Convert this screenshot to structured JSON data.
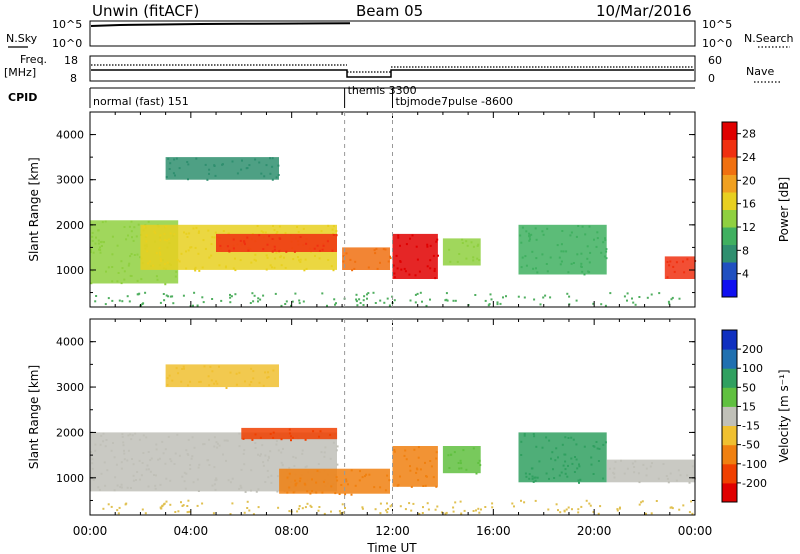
{
  "header": {
    "station": "Unwin (fitACF)",
    "beam": "Beam 05",
    "date": "10/Mar/2016"
  },
  "strip_labels": {
    "nsky": "N.Sky",
    "nsearch": "N.Search",
    "freq_line1": "Freq.",
    "freq_line2": "[MHz]",
    "nave": "Nave",
    "cpid": "CPID",
    "nsky_ticks": [
      "10^5",
      "10^0"
    ],
    "nsearch_ticks": [
      "10^5",
      "10^0"
    ],
    "freq_ticks": [
      "18",
      "8"
    ],
    "nave_ticks": [
      "60",
      "0"
    ]
  },
  "cpid_segments": [
    {
      "label": "normal (fast) 151",
      "start_hour": 0.0,
      "end_hour": 10.1
    },
    {
      "label": "themis 3300",
      "start_hour": 10.1,
      "end_hour": 12.0
    },
    {
      "label": "tbjmode7pulse -8600",
      "start_hour": 12.0,
      "end_hour": 24.0
    }
  ],
  "axes": {
    "xlabel": "Time UT",
    "x_ticks": [
      "00:00",
      "04:00",
      "08:00",
      "12:00",
      "16:00",
      "20:00",
      "00:00"
    ],
    "ylabel": "Slant Range [km]",
    "y_ticks": [
      "1000",
      "2000",
      "3000",
      "4000"
    ]
  },
  "power_colorbar": {
    "label": "Power [dB]",
    "ticks": [
      "4",
      "8",
      "12",
      "16",
      "20",
      "24",
      "28"
    ],
    "colors": [
      "#1010f0",
      "#2050c0",
      "#2f8f6f",
      "#40b060",
      "#8fd040",
      "#e8d020",
      "#f0a020",
      "#f07010",
      "#f03010",
      "#e00000"
    ]
  },
  "velocity_colorbar": {
    "label": "Velocity [m s⁻¹]",
    "ticks": [
      "200",
      "100",
      "50",
      "15",
      "-15",
      "-50",
      "-100",
      "-200"
    ],
    "colors": [
      "#1030c0",
      "#2070b0",
      "#30a060",
      "#60c040",
      "#c0c0b8",
      "#f0c030",
      "#f08010",
      "#f04000",
      "#e00000"
    ]
  },
  "chart_data": {
    "type": "heatmap",
    "x_range_hours": [
      0,
      24
    ],
    "y_range_km": [
      180,
      4500
    ],
    "panels": [
      {
        "name": "Power",
        "regions": [
          {
            "t0": 0.0,
            "t1": 3.5,
            "r0": 700,
            "r1": 2100,
            "level": 14
          },
          {
            "t0": 2.0,
            "t1": 9.8,
            "r0": 1000,
            "r1": 2000,
            "level": 16
          },
          {
            "t0": 5.0,
            "t1": 9.8,
            "r0": 1400,
            "r1": 1800,
            "level": 24
          },
          {
            "t0": 10.0,
            "t1": 11.9,
            "r0": 1000,
            "r1": 1500,
            "level": 22
          },
          {
            "t0": 12.0,
            "t1": 13.8,
            "r0": 800,
            "r1": 1800,
            "level": 27
          },
          {
            "t0": 14.0,
            "t1": 15.5,
            "r0": 1100,
            "r1": 1700,
            "level": 12
          },
          {
            "t0": 17.0,
            "t1": 20.5,
            "r0": 900,
            "r1": 2000,
            "level": 10
          },
          {
            "t0": 22.8,
            "t1": 24.0,
            "r0": 800,
            "r1": 1300,
            "level": 26
          },
          {
            "t0": 3.0,
            "t1": 7.5,
            "r0": 3000,
            "r1": 3500,
            "level": 6
          }
        ]
      },
      {
        "name": "Velocity",
        "regions": [
          {
            "t0": 0.0,
            "t1": 9.8,
            "r0": 700,
            "r1": 2000,
            "velocity": 0
          },
          {
            "t0": 6.0,
            "t1": 9.8,
            "r0": 1850,
            "r1": 2100,
            "velocity": -180
          },
          {
            "t0": 7.5,
            "t1": 11.9,
            "r0": 650,
            "r1": 1200,
            "velocity": -70
          },
          {
            "t0": 12.0,
            "t1": 13.8,
            "r0": 800,
            "r1": 1700,
            "velocity": -90
          },
          {
            "t0": 14.0,
            "t1": 15.5,
            "r0": 1100,
            "r1": 1700,
            "velocity": 30
          },
          {
            "t0": 17.0,
            "t1": 20.5,
            "r0": 900,
            "r1": 2000,
            "velocity": 60
          },
          {
            "t0": 20.5,
            "t1": 24.0,
            "r0": 900,
            "r1": 1400,
            "velocity": 0
          },
          {
            "t0": 3.0,
            "t1": 7.5,
            "r0": 3000,
            "r1": 3500,
            "velocity": -40
          }
        ]
      }
    ]
  }
}
